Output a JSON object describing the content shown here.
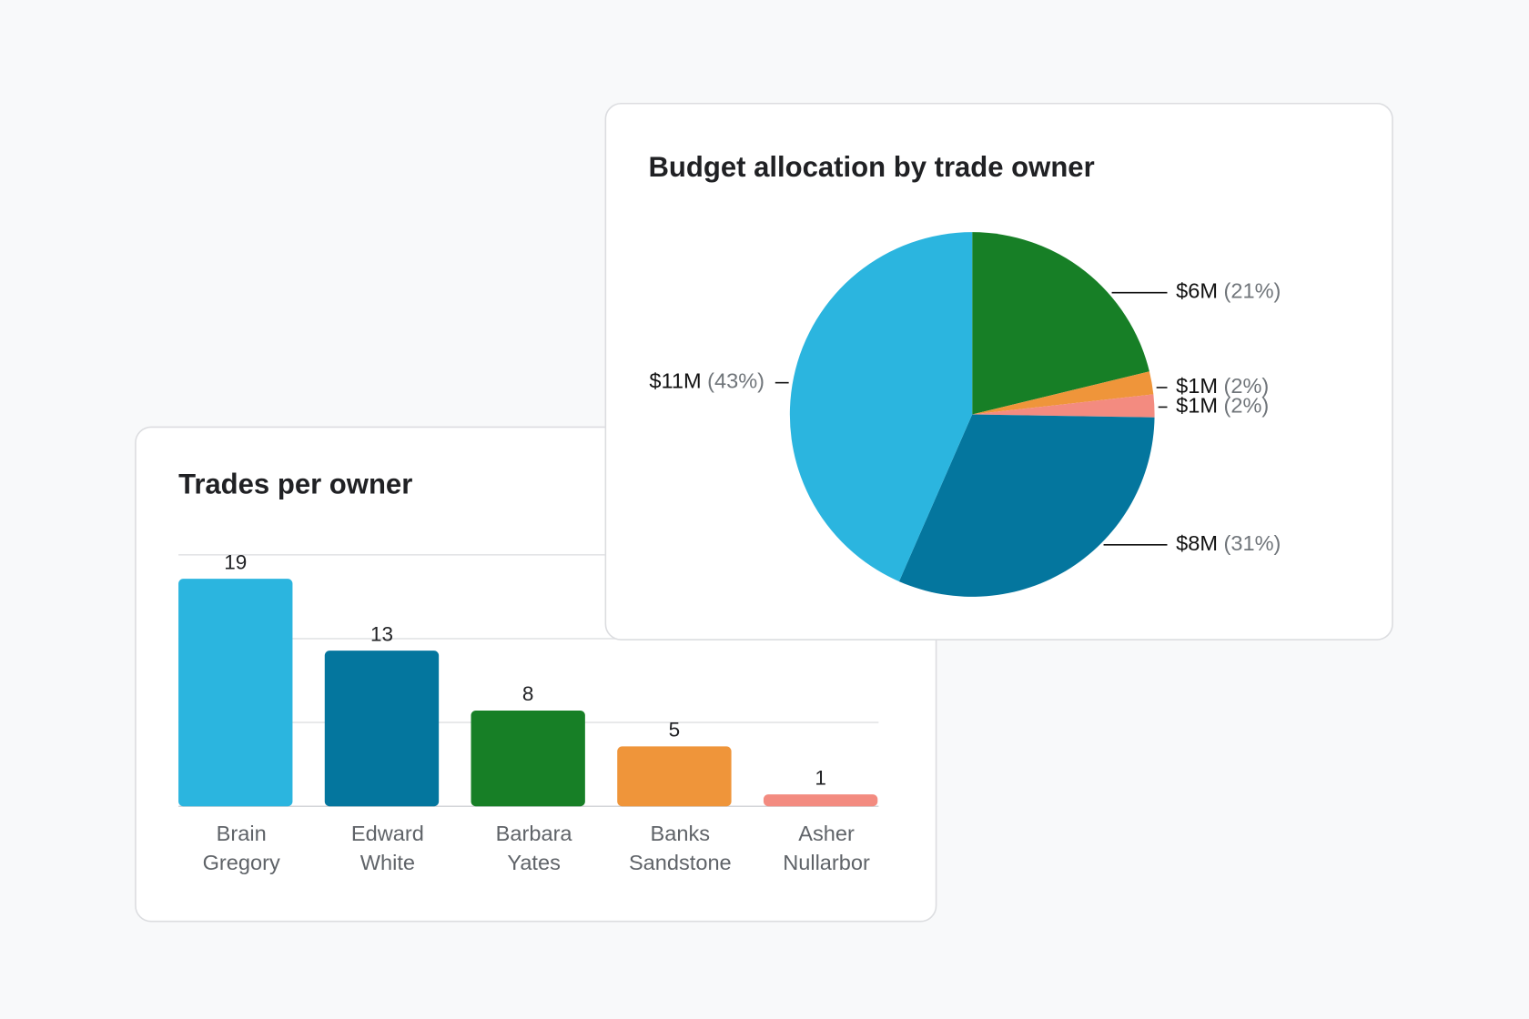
{
  "chart_data": [
    {
      "type": "bar",
      "title": "Trades per owner",
      "categories": [
        "Brain Gregory",
        "Edward White",
        "Barbara Yates",
        "Banks Sandstone",
        "Asher Nullarbor"
      ],
      "values": [
        19,
        13,
        8,
        5,
        1
      ],
      "colors": [
        "#2bb5df",
        "#04769e",
        "#177f26",
        "#ef953a",
        "#f38b80"
      ],
      "ylim": [
        0,
        21
      ],
      "yticks": [
        0,
        7,
        14,
        21
      ],
      "grid": true
    },
    {
      "type": "pie",
      "title": "Budget allocation by trade owner",
      "values": [
        21,
        2,
        2,
        31,
        43
      ],
      "value_labels": [
        "(21%)",
        "(2%)",
        "(2%)",
        "(31%)",
        "(43%)"
      ],
      "amounts": [
        6000000,
        1000000,
        1000000,
        8000000,
        11000000
      ],
      "amount_labels": [
        "$6M",
        "$1M",
        "$1M",
        "$8M",
        "$11M"
      ],
      "colors": [
        "#177f26",
        "#ef953a",
        "#f38b80",
        "#04769e",
        "#2bb5df"
      ]
    }
  ]
}
